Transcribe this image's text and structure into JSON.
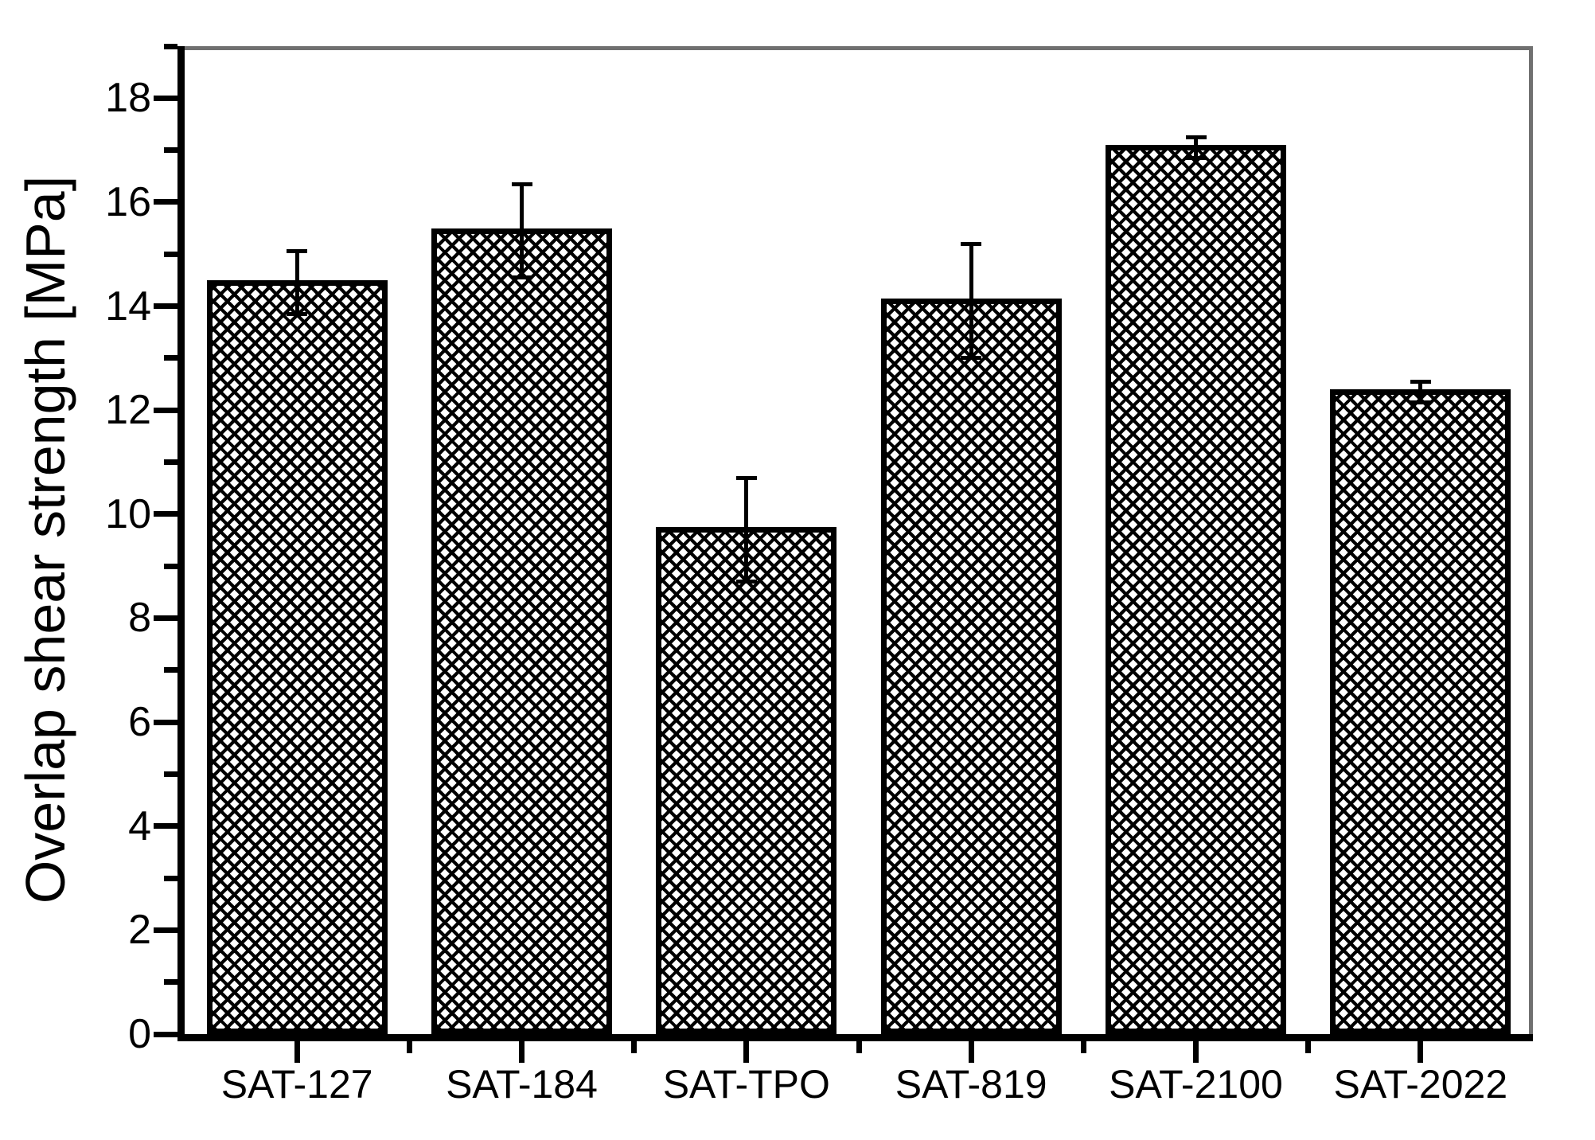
{
  "chart_data": {
    "type": "bar",
    "title": "",
    "xlabel": "",
    "ylabel": "Overlap shear strength [MPa]",
    "categories": [
      "SAT-127",
      "SAT-184",
      "SAT-TPO",
      "SAT-819",
      "SAT-2100",
      "SAT-2022"
    ],
    "values": [
      14.45,
      15.45,
      9.7,
      14.1,
      17.05,
      12.35
    ],
    "errors": [
      0.6,
      0.9,
      1.0,
      1.1,
      0.2,
      0.2
    ],
    "ylim": [
      0,
      19
    ],
    "y_major_tick_step": 2,
    "y_minor_tick_step": 1,
    "y_major_tick_labels": [
      "0",
      "2",
      "4",
      "6",
      "8",
      "10",
      "12",
      "14",
      "16",
      "18"
    ],
    "grid": "off",
    "legend": "none",
    "bar_style": {
      "fill_pattern": "diagonal-crosshatch",
      "pattern_color": "#000000",
      "bar_background": "#ffffff",
      "border_color": "#000000"
    },
    "frame": {
      "axis_color": "#000000",
      "top_right_border_color": "#707070",
      "background": "#ffffff"
    }
  }
}
